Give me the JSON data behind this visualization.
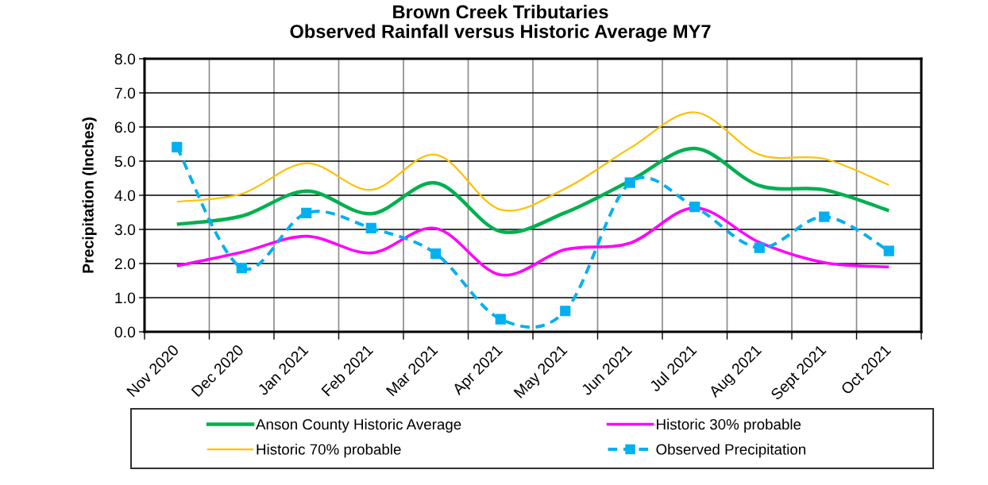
{
  "chart_data": {
    "type": "line",
    "title": "Brown Creek Tributaries\nObserved Rainfall versus Historic Average MY7",
    "ylabel": "Precipitation (Inches)",
    "categories": [
      "Nov 2020",
      "Dec 2020",
      "Jan 2021",
      "Feb 2021",
      "Mar 2021",
      "Apr 2021",
      "May 2021",
      "Jun 2021",
      "Jul 2021",
      "Aug 2021",
      "Sept 2021",
      "Oct 2021"
    ],
    "ylim": [
      0,
      8
    ],
    "yticks": [
      {
        "value": 0,
        "label": "0.0"
      },
      {
        "value": 1,
        "label": "1.0"
      },
      {
        "value": 2,
        "label": "2.0"
      },
      {
        "value": 3,
        "label": "3.0"
      },
      {
        "value": 4,
        "label": "4.0"
      },
      {
        "value": 5,
        "label": "5.0"
      },
      {
        "value": 6,
        "label": "6.0"
      },
      {
        "value": 7,
        "label": "7.0"
      },
      {
        "value": 8,
        "label": "8.0"
      }
    ],
    "grid": true,
    "legend": "bottom",
    "series": [
      {
        "name": "Anson County Historic Average",
        "color": "#00b050",
        "marker": "none",
        "line_style": "solid",
        "values": [
          3.15,
          3.39,
          4.12,
          3.46,
          4.36,
          2.94,
          3.49,
          4.42,
          5.37,
          4.28,
          4.16,
          3.55
        ]
      },
      {
        "name": "Historic 30% probable",
        "color": "#ff00ff",
        "marker": "none",
        "line_style": "solid",
        "values": [
          1.93,
          2.33,
          2.8,
          2.31,
          3.03,
          1.67,
          2.41,
          2.6,
          3.63,
          2.62,
          2.03,
          1.9
        ]
      },
      {
        "name": "Historic 70% probable",
        "color": "#ffc000",
        "marker": "none",
        "line_style": "solid",
        "values": [
          3.81,
          4.04,
          4.94,
          4.16,
          5.19,
          3.58,
          4.2,
          5.38,
          6.43,
          5.19,
          5.07,
          4.3
        ]
      },
      {
        "name": "Observed Precipitation",
        "color": "#00b0f0",
        "marker": "square",
        "line_style": "dashed",
        "values": [
          5.41,
          1.87,
          3.48,
          3.04,
          2.29,
          0.37,
          0.61,
          4.37,
          3.66,
          2.46,
          3.37,
          2.37
        ]
      }
    ]
  }
}
